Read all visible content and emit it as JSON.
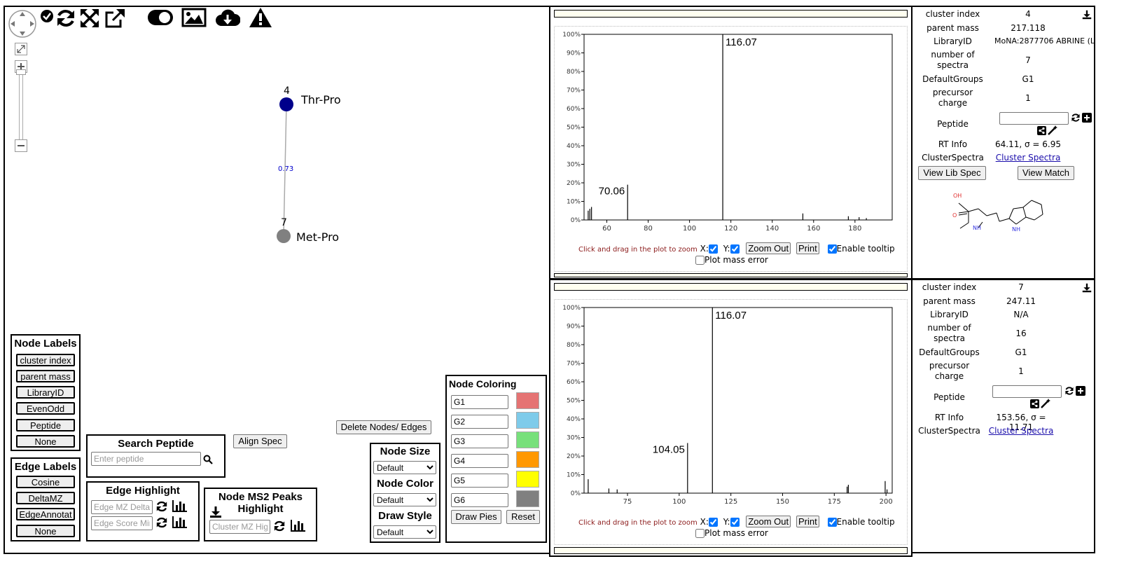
{
  "network": {
    "nodes": [
      {
        "id": "4",
        "label": "Thr-Pro",
        "color": "#00008b"
      },
      {
        "id": "7",
        "label": "Met-Pro",
        "color": "#808080"
      }
    ],
    "edge_label": "0.73"
  },
  "node_labels_panel": {
    "title": "Node Labels",
    "buttons": [
      "cluster index",
      "parent mass",
      "LibraryID",
      "EvenOdd",
      "Peptide",
      "None"
    ]
  },
  "edge_labels_panel": {
    "title": "Edge Labels",
    "buttons": [
      "Cosine",
      "DeltaMZ",
      "EdgeAnnotat",
      "None"
    ]
  },
  "search_peptide": {
    "title": "Search Peptide",
    "placeholder": "Enter peptide"
  },
  "align_spec_label": "Align Spec",
  "delete_nodes_label": "Delete Nodes/ Edges",
  "edge_highlight": {
    "title": "Edge Highlight",
    "mz_placeholder": "Edge MZ Delta",
    "score_placeholder": "Edge Score Min"
  },
  "node_ms2": {
    "title_line1": "Node MS2 Peaks",
    "title_line2": "Highlight",
    "placeholder": "Cluster MZ Highlight"
  },
  "style_panel": {
    "node_size_title": "Node Size",
    "node_size_value": "Default",
    "node_color_title": "Node Color",
    "node_color_value": "Default",
    "draw_style_title": "Draw Style",
    "draw_style_value": "Default"
  },
  "node_coloring": {
    "title": "Node Coloring",
    "groups": [
      {
        "name": "G1",
        "color": "#e57373"
      },
      {
        "name": "G2",
        "color": "#7ecbea"
      },
      {
        "name": "G3",
        "color": "#77e07b"
      },
      {
        "name": "G4",
        "color": "#ff9800"
      },
      {
        "name": "G5",
        "color": "#ffff00"
      },
      {
        "name": "G6",
        "color": "#808080"
      }
    ],
    "draw_pies_label": "Draw Pies",
    "reset_label": "Reset"
  },
  "spectrum_controls": {
    "zoom_hint": "Click and drag in the plot to zoom",
    "x_label": "X:",
    "y_label": "Y:",
    "zoom_out_label": "Zoom Out",
    "print_label": "Print",
    "tooltip_label": "Enable tooltip",
    "mass_error_label": "Plot mass error"
  },
  "chart_data": [
    {
      "type": "bar",
      "xlim": [
        49,
        198
      ],
      "ylim": [
        0,
        100
      ],
      "x_ticks": [
        60,
        80,
        100,
        120,
        140,
        160,
        180
      ],
      "y_ticks": [
        "0%",
        "10%",
        "20%",
        "30%",
        "40%",
        "50%",
        "60%",
        "70%",
        "80%",
        "90%",
        "100%"
      ],
      "peaks": [
        {
          "x": 51.0,
          "y": 5
        },
        {
          "x": 51.8,
          "y": 6
        },
        {
          "x": 52.6,
          "y": 7
        },
        {
          "x": 70.06,
          "y": 19,
          "label": "70.06"
        },
        {
          "x": 116.07,
          "y": 100,
          "label": "116.07"
        },
        {
          "x": 154.8,
          "y": 3.5
        },
        {
          "x": 176.8,
          "y": 2
        },
        {
          "x": 182,
          "y": 1.5
        },
        {
          "x": 185.5,
          "y": 1
        }
      ]
    },
    {
      "type": "bar",
      "xlim": [
        54,
        203
      ],
      "ylim": [
        0,
        100
      ],
      "x_ticks": [
        75,
        100,
        125,
        150,
        175,
        200
      ],
      "y_ticks": [
        "0%",
        "10%",
        "20%",
        "30%",
        "40%",
        "50%",
        "60%",
        "70%",
        "80%",
        "90%",
        "100%"
      ],
      "peaks": [
        {
          "x": 56,
          "y": 7.5
        },
        {
          "x": 66,
          "y": 2.5
        },
        {
          "x": 70,
          "y": 2
        },
        {
          "x": 104.05,
          "y": 27,
          "label": "104.05"
        },
        {
          "x": 116.07,
          "y": 100,
          "label": "116.07"
        },
        {
          "x": 181.2,
          "y": 3.5
        },
        {
          "x": 181.8,
          "y": 4.5
        },
        {
          "x": 199.6,
          "y": 6.5
        },
        {
          "x": 200.5,
          "y": 2
        }
      ]
    }
  ],
  "node_info": [
    {
      "cluster_index_label": "cluster index",
      "cluster_index": "4",
      "parent_mass_label": "parent mass",
      "parent_mass": "217.118",
      "library_id_label": "LibraryID",
      "library_id": "MoNA:2877706 ABRINE (L",
      "num_spectra_label_1": "number of",
      "num_spectra_label_2": "spectra",
      "num_spectra": "7",
      "default_groups_label": "DefaultGroups",
      "default_groups": "G1",
      "precursor_charge_label_1": "precursor",
      "precursor_charge_label_2": "charge",
      "precursor_charge": "1",
      "peptide_label": "Peptide",
      "rt_info_label": "RT Info",
      "rt_info": "64.11, σ = 6.95",
      "cluster_spectra_label": "ClusterSpectra",
      "cluster_spectra_link": "Cluster Spectra",
      "view_lib_spec_label": "View Lib Spec",
      "view_match_label": "View Match",
      "structure": {
        "atom_oh": "OH",
        "atom_o": "O",
        "atom_nh_amine": "NH",
        "atom_nh_indole": "NH"
      }
    },
    {
      "cluster_index_label": "cluster index",
      "cluster_index": "7",
      "parent_mass_label": "parent mass",
      "parent_mass": "247.11",
      "library_id_label": "LibraryID",
      "library_id": "N/A",
      "num_spectra_label_1": "number of",
      "num_spectra_label_2": "spectra",
      "num_spectra": "16",
      "default_groups_label": "DefaultGroups",
      "default_groups": "G1",
      "precursor_charge_label_1": "precursor",
      "precursor_charge_label_2": "charge",
      "precursor_charge": "1",
      "peptide_label": "Peptide",
      "rt_info_label": "RT Info",
      "rt_info": "153.56, σ = 11.71",
      "cluster_spectra_label": "ClusterSpectra",
      "cluster_spectra_link": "Cluster Spectra"
    }
  ],
  "icons": {
    "toolbar": [
      "pan-control-icon",
      "checkmark-icon",
      "refresh-icon",
      "fit-expand-icon",
      "external-link-icon",
      "toggle-icon",
      "image-icon",
      "cloud-download-icon",
      "warning-icon"
    ],
    "zoom": [
      "fullscreen-icon",
      "zoom-in-icon",
      "zoom-out-icon"
    ]
  }
}
